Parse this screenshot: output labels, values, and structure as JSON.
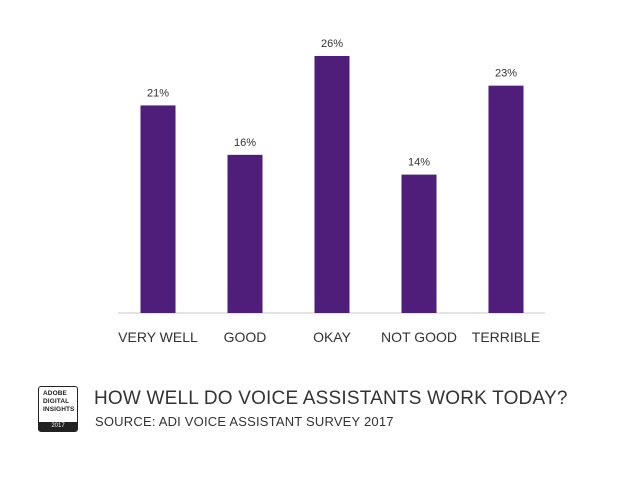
{
  "chart_data": {
    "type": "bar",
    "title": "HOW WELL DO VOICE ASSISTANTS WORK TODAY?",
    "categories": [
      "VERY WELL",
      "GOOD",
      "OKAY",
      "NOT GOOD",
      "TERRIBLE"
    ],
    "values": [
      21,
      16,
      26,
      14,
      23
    ],
    "value_labels": [
      "21%",
      "16%",
      "26%",
      "14%",
      "23%"
    ],
    "xlabel": "",
    "ylabel": "",
    "ylim": [
      0,
      26
    ],
    "grid": false,
    "bar_color": "#4e1e7a"
  },
  "footer": {
    "title": "HOW WELL DO VOICE ASSISTANTS WORK TODAY?",
    "source": "SOURCE: ADI VOICE ASSISTANT SURVEY 2017",
    "logo": {
      "line1": "ADOBE",
      "line2": "DIGITAL",
      "line3": "INSIGHTS",
      "year": "2017"
    }
  }
}
